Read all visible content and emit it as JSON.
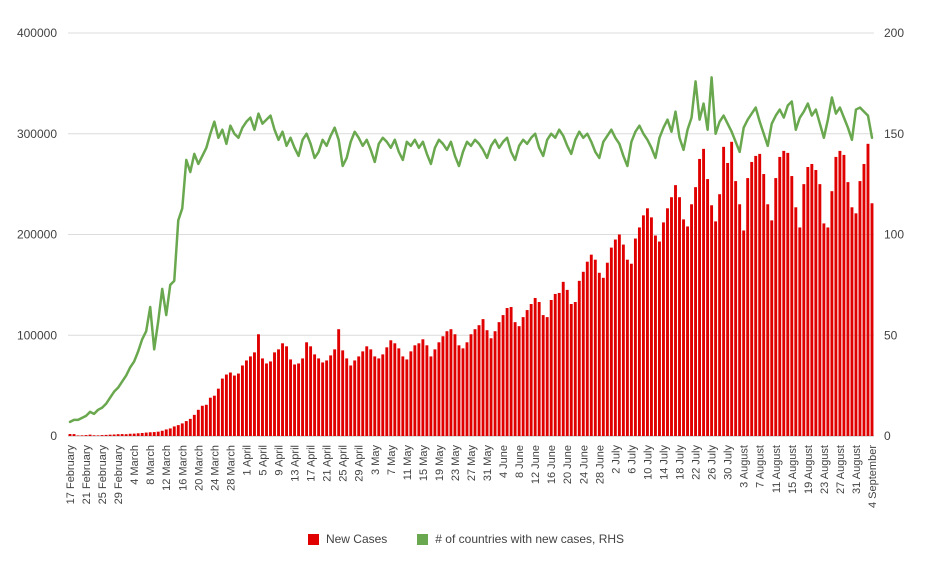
{
  "chart": {
    "background": "#ffffff",
    "grid_color": "#dcdcdc",
    "baseline_color": "#bdbdbd",
    "axis_text_color": "#424242",
    "left_axis_tick_labels": [
      "0",
      "100000",
      "200000",
      "300000",
      "400000"
    ],
    "right_axis_tick_labels": [
      "0",
      "50",
      "100",
      "150",
      "200"
    ]
  },
  "chart_data": {
    "type": "combo",
    "title": "",
    "xlabel": "",
    "ylabel_left": "",
    "ylabel_right": "",
    "grid": true,
    "left_axis": {
      "min": 0,
      "max": 400000,
      "ticks": [
        0,
        100000,
        200000,
        300000,
        400000
      ]
    },
    "right_axis": {
      "min": 0,
      "max": 200,
      "ticks": [
        0,
        50,
        100,
        150,
        200
      ]
    },
    "x_tick_interval": 4,
    "legend": {
      "position": "bottom",
      "items": [
        {
          "label": "New Cases",
          "color": "#e00000",
          "marker": "square"
        },
        {
          "label": "# of countries with new cases, RHS",
          "color": "#6aa84f",
          "marker": "square"
        }
      ]
    },
    "x": [
      "17 February",
      "18 February",
      "19 February",
      "20 February",
      "21 February",
      "22 February",
      "23 February",
      "24 February",
      "25 February",
      "26 February",
      "27 February",
      "28 February",
      "29 February",
      "1 March",
      "2 March",
      "3 March",
      "4 March",
      "5 March",
      "6 March",
      "7 March",
      "8 March",
      "9 March",
      "10 March",
      "11 March",
      "12 March",
      "13 March",
      "14 March",
      "15 March",
      "16 March",
      "17 March",
      "18 March",
      "19 March",
      "20 March",
      "21 March",
      "22 March",
      "23 March",
      "24 March",
      "25 March",
      "26 March",
      "27 March",
      "28 March",
      "29 March",
      "30 March",
      "31 March",
      "1 April",
      "2 April",
      "3 April",
      "4 April",
      "5 April",
      "6 April",
      "7 April",
      "8 April",
      "9 April",
      "10 April",
      "11 April",
      "12 April",
      "13 April",
      "14 April",
      "15 April",
      "16 April",
      "17 April",
      "18 April",
      "19 April",
      "20 April",
      "21 April",
      "22 April",
      "23 April",
      "24 April",
      "25 April",
      "26 April",
      "27 April",
      "28 April",
      "29 April",
      "30 April",
      "1 May",
      "2 May",
      "3 May",
      "4 May",
      "5 May",
      "6 May",
      "7 May",
      "8 May",
      "9 May",
      "10 May",
      "11 May",
      "12 May",
      "13 May",
      "14 May",
      "15 May",
      "16 May",
      "17 May",
      "18 May",
      "19 May",
      "20 May",
      "21 May",
      "22 May",
      "23 May",
      "24 May",
      "25 May",
      "26 May",
      "27 May",
      "28 May",
      "29 May",
      "30 May",
      "31 May",
      "1 June",
      "2 June",
      "3 June",
      "4 June",
      "5 June",
      "6 June",
      "7 June",
      "8 June",
      "9 June",
      "10 June",
      "11 June",
      "12 June",
      "13 June",
      "14 June",
      "15 June",
      "16 June",
      "17 June",
      "18 June",
      "19 June",
      "20 June",
      "21 June",
      "22 June",
      "23 June",
      "24 June",
      "25 June",
      "26 June",
      "27 June",
      "28 June",
      "29 June",
      "30 June",
      "1 July",
      "2 July",
      "3 July",
      "4 July",
      "5 July",
      "6 July",
      "7 July",
      "8 July",
      "9 July",
      "10 July",
      "11 July",
      "12 July",
      "13 July",
      "14 July",
      "15 July",
      "16 July",
      "17 July",
      "18 July",
      "19 July",
      "20 July",
      "21 July",
      "22 July",
      "23 July",
      "24 July",
      "25 July",
      "26 July",
      "27 July",
      "28 July",
      "29 July",
      "30 July",
      "31 July",
      "1 August",
      "2 August",
      "3 August",
      "4 August",
      "5 August",
      "6 August",
      "7 August",
      "8 August",
      "9 August",
      "10 August",
      "11 August",
      "12 August",
      "13 August",
      "14 August",
      "15 August",
      "16 August",
      "17 August",
      "18 August",
      "19 August",
      "20 August",
      "21 August",
      "22 August",
      "23 August",
      "24 August",
      "25 August",
      "26 August",
      "27 August",
      "28 August",
      "29 August",
      "30 August",
      "31 August",
      "1 September",
      "2 September",
      "3 September",
      "4 September"
    ],
    "series": [
      {
        "name": "New Cases",
        "type": "bar",
        "axis": "left",
        "color": "#e00000",
        "values": [
          2000,
          1900,
          550,
          650,
          900,
          1350,
          700,
          600,
          900,
          1100,
          1350,
          1500,
          1800,
          1900,
          1800,
          2200,
          2350,
          2700,
          3000,
          3400,
          3700,
          3900,
          4300,
          5200,
          6500,
          7500,
          9500,
          10800,
          12500,
          14800,
          17000,
          21000,
          26000,
          30000,
          31000,
          38000,
          40000,
          47000,
          57000,
          61000,
          63000,
          60000,
          62000,
          70000,
          75000,
          79000,
          83000,
          101000,
          77000,
          72000,
          74000,
          83000,
          86000,
          92000,
          89000,
          76000,
          71000,
          72000,
          77000,
          93000,
          89000,
          81000,
          77000,
          73000,
          75000,
          80000,
          86000,
          106000,
          85000,
          77000,
          70000,
          75000,
          79000,
          84000,
          89000,
          86000,
          79000,
          77000,
          81000,
          88000,
          95000,
          92000,
          87000,
          79000,
          76000,
          84000,
          90000,
          92000,
          96000,
          90000,
          79000,
          86000,
          93000,
          99000,
          104000,
          106000,
          101000,
          90000,
          87000,
          93000,
          101000,
          106000,
          110000,
          116000,
          105000,
          97000,
          104000,
          113000,
          120000,
          127000,
          128000,
          113000,
          109000,
          118000,
          125000,
          131000,
          137000,
          133000,
          120000,
          118000,
          135000,
          141000,
          142000,
          153000,
          145000,
          131000,
          133000,
          154000,
          163000,
          173000,
          180000,
          175000,
          162000,
          157000,
          172000,
          187000,
          195000,
          200000,
          190000,
          175000,
          171000,
          196000,
          207000,
          219000,
          226000,
          217000,
          199000,
          193000,
          212000,
          226000,
          237000,
          249000,
          237000,
          215000,
          208000,
          230000,
          247000,
          275000,
          285000,
          255000,
          229000,
          213000,
          240000,
          287000,
          271000,
          292000,
          253000,
          230000,
          204000,
          256000,
          272000,
          278000,
          280000,
          260000,
          230000,
          214000,
          256000,
          277000,
          283000,
          281000,
          258000,
          227000,
          207000,
          250000,
          267000,
          270000,
          264000,
          250000,
          211000,
          207000,
          243000,
          277000,
          283000,
          279000,
          252000,
          227000,
          221000,
          253000,
          270000,
          290000,
          231000
        ]
      },
      {
        "name": "# of countries with new cases, RHS",
        "type": "line",
        "axis": "right",
        "color": "#6aa84f",
        "values": [
          7,
          8,
          8,
          9,
          10,
          12,
          11,
          13,
          14,
          16,
          19,
          22,
          24,
          27,
          30,
          34,
          37,
          42,
          48,
          52,
          64,
          43,
          57,
          73,
          60,
          75,
          77,
          107,
          113,
          137,
          131,
          140,
          135,
          139,
          143,
          150,
          156,
          148,
          152,
          145,
          154,
          150,
          148,
          153,
          156,
          158,
          152,
          160,
          155,
          157,
          159,
          152,
          147,
          151,
          144,
          148,
          143,
          139,
          147,
          150,
          145,
          138,
          141,
          147,
          144,
          149,
          153,
          147,
          134,
          138,
          146,
          151,
          148,
          144,
          147,
          142,
          136,
          145,
          148,
          146,
          143,
          147,
          141,
          137,
          146,
          144,
          147,
          143,
          146,
          140,
          135,
          143,
          147,
          145,
          142,
          146,
          139,
          134,
          141,
          146,
          144,
          147,
          145,
          142,
          138,
          144,
          147,
          143,
          146,
          148,
          141,
          137,
          144,
          147,
          145,
          148,
          150,
          143,
          139,
          147,
          150,
          148,
          152,
          149,
          144,
          140,
          147,
          151,
          148,
          150,
          146,
          141,
          138,
          146,
          149,
          152,
          148,
          145,
          139,
          134,
          146,
          151,
          154,
          150,
          147,
          143,
          138,
          148,
          153,
          157,
          151,
          161,
          148,
          142,
          152,
          158,
          176,
          157,
          165,
          152,
          178,
          150,
          156,
          159,
          155,
          151,
          146,
          141,
          153,
          157,
          160,
          163,
          156,
          150,
          144,
          155,
          159,
          162,
          158,
          164,
          166,
          152,
          158,
          161,
          165,
          159,
          162,
          155,
          148,
          157,
          168,
          160,
          163,
          158,
          153,
          147,
          162,
          163,
          161,
          159,
          148
        ]
      }
    ]
  }
}
